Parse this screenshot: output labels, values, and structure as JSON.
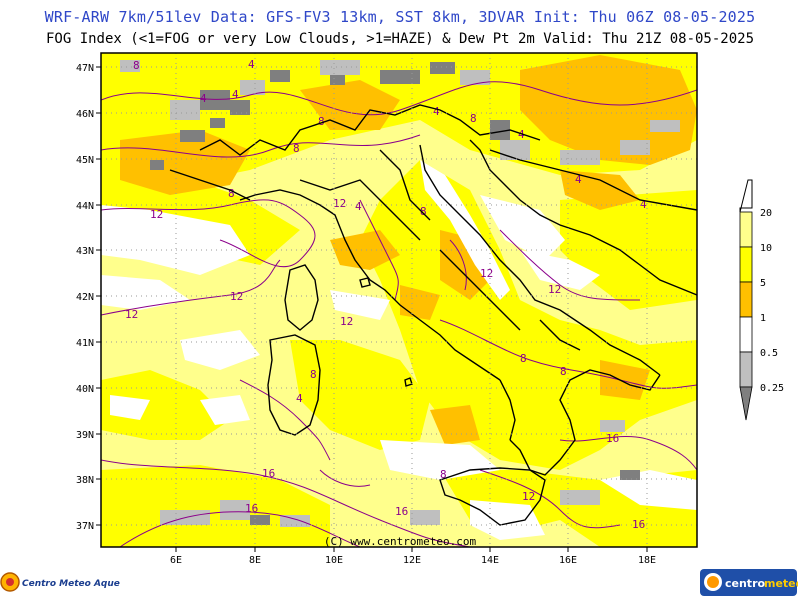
{
  "header": {
    "line1": "WRF-ARW 7km/51lev  Data: GFS-FV3 13km, SST 8km, 3DVAR  Init: Thu 06Z 08-05-2025",
    "line2": "FOG Index (<1=FOG or very Low Clouds, >1=HAZE) & Dew Pt 2m  Valid: Thu 21Z 08-05-2025"
  },
  "map": {
    "lat_labels": [
      "47N",
      "46N",
      "45N",
      "44N",
      "43N",
      "42N",
      "41N",
      "40N",
      "39N",
      "38N",
      "37N"
    ],
    "lon_labels": [
      "6E",
      "8E",
      "10E",
      "12E",
      "14E",
      "16E",
      "18E"
    ],
    "copyright": "(C) www.centrometeo.com",
    "dewpoint_contour_labels": [
      "4",
      "8",
      "12",
      "16"
    ],
    "colors": {
      "fog_white": "#ffffff",
      "yellow_light": "#ffff8c",
      "yellow": "#ffff00",
      "orange": "#ffc000",
      "gray_light": "#bfbfbf",
      "gray_dark": "#7f7f7f",
      "contour": "#8b008b",
      "border": "#000000"
    }
  },
  "legend": {
    "values": [
      "20",
      "10",
      "5",
      "1",
      "0.5",
      "0.25"
    ]
  },
  "footer": {
    "left_brand": "Centro Meteo Aquesio",
    "right_brand_a": "centro",
    "right_brand_b": "meteo"
  }
}
